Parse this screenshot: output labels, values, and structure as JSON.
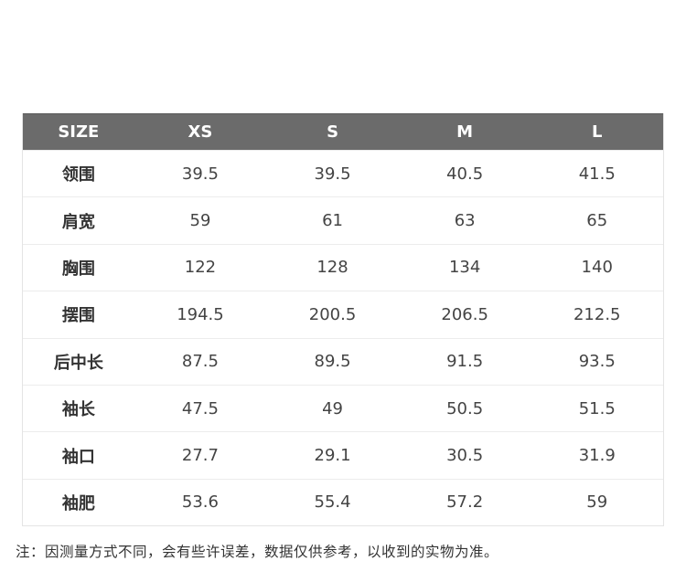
{
  "table": {
    "headers": [
      "SIZE",
      "XS",
      "S",
      "M",
      "L"
    ],
    "rows": [
      {
        "label": "领围",
        "values": [
          "39.5",
          "39.5",
          "40.5",
          "41.5"
        ]
      },
      {
        "label": "肩宽",
        "values": [
          "59",
          "61",
          "63",
          "65"
        ]
      },
      {
        "label": "胸围",
        "values": [
          "122",
          "128",
          "134",
          "140"
        ]
      },
      {
        "label": "摆围",
        "values": [
          "194.5",
          "200.5",
          "206.5",
          "212.5"
        ]
      },
      {
        "label": "后中长",
        "values": [
          "87.5",
          "89.5",
          "91.5",
          "93.5"
        ]
      },
      {
        "label": "袖长",
        "values": [
          "47.5",
          "49",
          "50.5",
          "51.5"
        ]
      },
      {
        "label": "袖口",
        "values": [
          "27.7",
          "29.1",
          "30.5",
          "31.9"
        ]
      },
      {
        "label": "袖肥",
        "values": [
          "53.6",
          "55.4",
          "57.2",
          "59"
        ]
      }
    ]
  },
  "note": "注：因测量方式不同，会有些许误差，数据仅供参考，以收到的实物为准。",
  "colors": {
    "header_bg": "#6b6b6b",
    "header_text": "#ffffff",
    "border": "#ececec"
  }
}
